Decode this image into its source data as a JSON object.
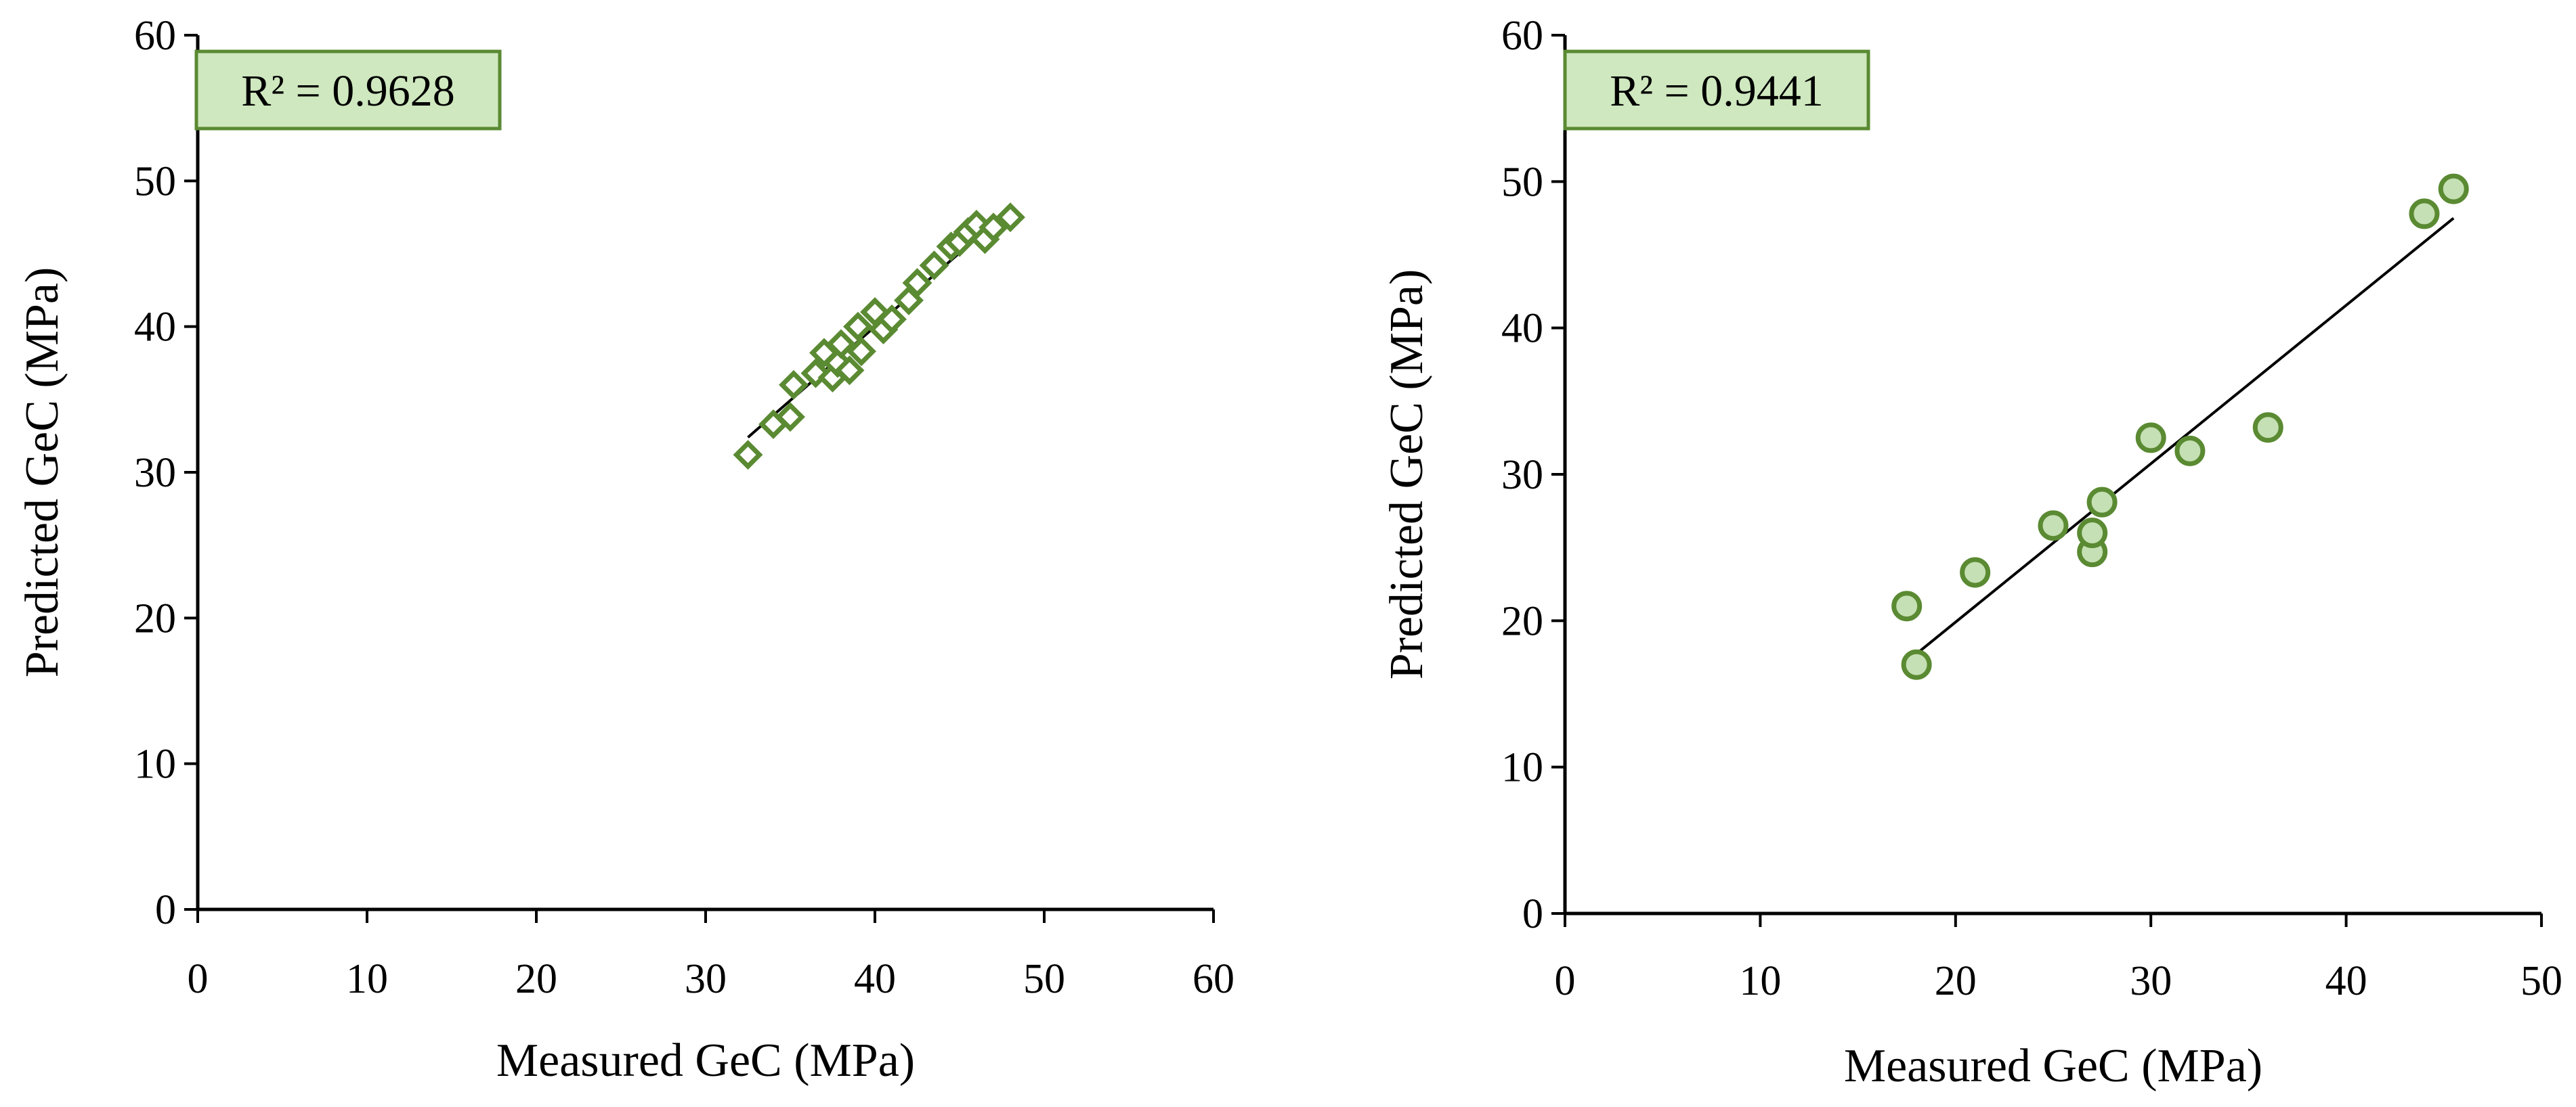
{
  "chart_data": [
    {
      "type": "scatter",
      "marker": "diamond",
      "xlabel": "Measured GeC (MPa)",
      "ylabel": "Predicted GeC (MPa)",
      "xlim": [
        0,
        60
      ],
      "ylim": [
        0,
        60
      ],
      "xticks": [
        "0",
        "10",
        "20",
        "30",
        "40",
        "50",
        "60"
      ],
      "yticks": [
        "0",
        "10",
        "20",
        "30",
        "40",
        "50",
        "60"
      ],
      "grid": false,
      "annotation": "R² = 0.9628",
      "trendline": {
        "x": [
          32.5,
          48.0
        ],
        "y": [
          32.4,
          48.1
        ]
      },
      "x": [
        32.5,
        34.0,
        35.0,
        35.2,
        36.5,
        37.0,
        37.5,
        37.8,
        38.0,
        38.5,
        39.0,
        39.2,
        40.0,
        40.5,
        41.0,
        42.0,
        42.5,
        43.5,
        44.5,
        45.0,
        45.5,
        46.0,
        46.5,
        47.0,
        48.0
      ],
      "y": [
        31.2,
        33.3,
        33.8,
        36.0,
        36.8,
        38.2,
        36.5,
        37.5,
        38.8,
        37.0,
        40.0,
        38.3,
        41.0,
        39.8,
        40.5,
        41.8,
        43.0,
        44.2,
        45.5,
        45.8,
        46.5,
        47.0,
        46.0,
        46.8,
        47.5
      ],
      "colors": {
        "marker_stroke": "#5a8a32",
        "marker_fill": "#ffffff",
        "box_fill": "#cfe8bf",
        "box_stroke": "#5a8a32"
      }
    },
    {
      "type": "scatter",
      "marker": "circle",
      "xlabel": "Measured GeC (MPa)",
      "ylabel": "Predicted GeC (MPa)",
      "xlim": [
        0,
        50
      ],
      "ylim": [
        0,
        60
      ],
      "xticks": [
        "0",
        "10",
        "20",
        "30",
        "40",
        "50"
      ],
      "yticks": [
        "0",
        "10",
        "20",
        "30",
        "40",
        "50",
        "60"
      ],
      "grid": false,
      "annotation": "R² = 0.9441",
      "trendline": {
        "x": [
          17.5,
          45.5
        ],
        "y": [
          17.2,
          47.5
        ]
      },
      "x": [
        17.5,
        18.0,
        21.0,
        25.0,
        27.0,
        27.0,
        27.5,
        30.0,
        32.0,
        36.0,
        44.0,
        45.5
      ],
      "y": [
        21.0,
        17.0,
        23.3,
        26.5,
        24.7,
        26.0,
        28.1,
        32.5,
        31.6,
        33.2,
        47.8,
        49.5
      ],
      "colors": {
        "marker_stroke": "#5a8a32",
        "marker_fill": "#c5e0b4",
        "box_fill": "#cfe8bf",
        "box_stroke": "#5a8a32"
      }
    }
  ]
}
